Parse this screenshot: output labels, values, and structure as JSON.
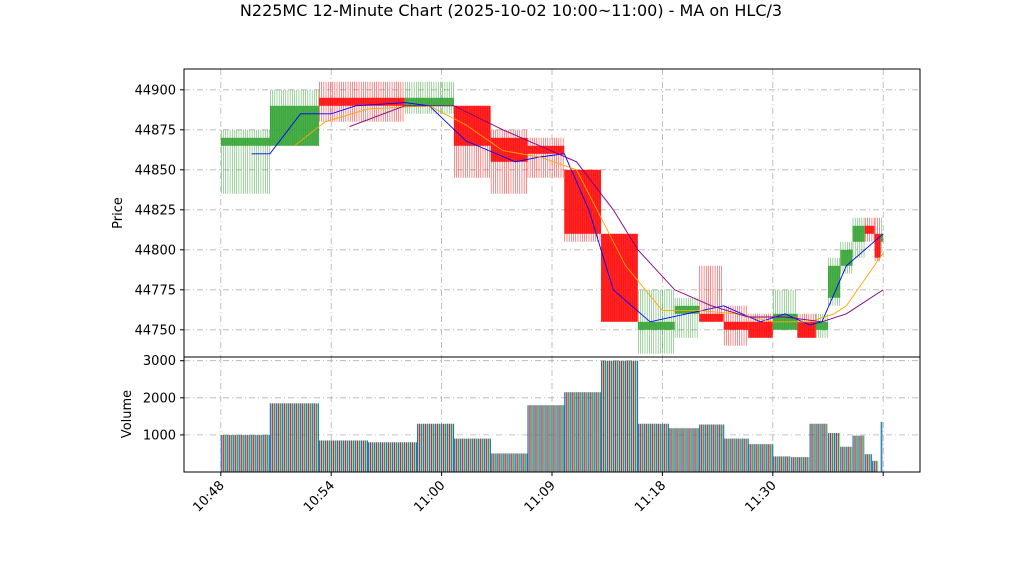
{
  "chart_data": {
    "type": "candlestick",
    "title": "N225MC 12-Minute Chart (2025-10-02 10:00~11:00) - MA on HLC/3",
    "price_panel": {
      "ylabel": "Price",
      "ylim": [
        44733,
        44913
      ],
      "yticks": [
        44750,
        44775,
        44800,
        44825,
        44850,
        44875,
        44900
      ],
      "up_color": "#2ca02c",
      "down_color": "#ff0000",
      "candles": [
        {
          "t": 0,
          "w": 4,
          "open": 44865,
          "high": 44875,
          "low": 44835,
          "close": 44870
        },
        {
          "t": 4,
          "w": 4,
          "open": 44865,
          "high": 44900,
          "low": 44865,
          "close": 44890
        },
        {
          "t": 8,
          "w": 7,
          "open": 44895,
          "high": 44905,
          "low": 44880,
          "close": 44890
        },
        {
          "t": 15,
          "w": 4,
          "open": 44890,
          "high": 44905,
          "low": 44885,
          "close": 44895
        },
        {
          "t": 19,
          "w": 3,
          "open": 44890,
          "high": 44890,
          "low": 44845,
          "close": 44865
        },
        {
          "t": 22,
          "w": 3,
          "open": 44870,
          "high": 44875,
          "low": 44835,
          "close": 44855
        },
        {
          "t": 25,
          "w": 3,
          "open": 44865,
          "high": 44870,
          "low": 44845,
          "close": 44860
        },
        {
          "t": 28,
          "w": 3,
          "open": 44850,
          "high": 44850,
          "low": 44805,
          "close": 44810
        },
        {
          "t": 31,
          "w": 3,
          "open": 44810,
          "high": 44810,
          "low": 44755,
          "close": 44755
        },
        {
          "t": 34,
          "w": 3,
          "open": 44750,
          "high": 44775,
          "low": 44735,
          "close": 44755
        },
        {
          "t": 37,
          "w": 2,
          "open": 44760,
          "high": 44770,
          "low": 44745,
          "close": 44765
        },
        {
          "t": 39,
          "w": 2,
          "open": 44760,
          "high": 44790,
          "low": 44755,
          "close": 44755
        },
        {
          "t": 41,
          "w": 2,
          "open": 44755,
          "high": 44765,
          "low": 44740,
          "close": 44750
        },
        {
          "t": 43,
          "w": 2,
          "open": 44755,
          "high": 44760,
          "low": 44745,
          "close": 44745
        },
        {
          "t": 45,
          "w": 2,
          "open": 44750,
          "high": 44775,
          "low": 44750,
          "close": 44760
        },
        {
          "t": 47,
          "w": 1.5,
          "open": 44755,
          "high": 44760,
          "low": 44745,
          "close": 44745
        },
        {
          "t": 48.5,
          "w": 1,
          "open": 44750,
          "high": 44760,
          "low": 44745,
          "close": 44755
        },
        {
          "t": 49.5,
          "w": 1,
          "open": 44770,
          "high": 44795,
          "low": 44765,
          "close": 44790
        },
        {
          "t": 50.5,
          "w": 1,
          "open": 44790,
          "high": 44805,
          "low": 44785,
          "close": 44800
        },
        {
          "t": 51.5,
          "w": 1,
          "open": 44805,
          "high": 44820,
          "low": 44795,
          "close": 44815
        },
        {
          "t": 52.5,
          "w": 0.8,
          "open": 44815,
          "high": 44820,
          "low": 44805,
          "close": 44810
        },
        {
          "t": 53.3,
          "w": 0.5,
          "open": 44810,
          "high": 44820,
          "low": 44793,
          "close": 44795
        },
        {
          "t": 53.8,
          "w": 0.2,
          "open": 44805,
          "high": 44820,
          "low": 44798,
          "close": 44810
        }
      ],
      "ma_series": [
        {
          "color": "#0000ff",
          "points": [
            [
              2.5,
              44860
            ],
            [
              4,
              44860
            ],
            [
              6.5,
              44885
            ],
            [
              9,
              44885
            ],
            [
              11,
              44890
            ],
            [
              15,
              44892
            ],
            [
              17,
              44890
            ],
            [
              20,
              44868
            ],
            [
              24,
              44855
            ],
            [
              26,
              44858
            ],
            [
              28,
              44860
            ],
            [
              30,
              44825
            ],
            [
              32,
              44775
            ],
            [
              35,
              44755
            ],
            [
              38,
              44760
            ],
            [
              41,
              44765
            ],
            [
              44,
              44755
            ],
            [
              46,
              44760
            ],
            [
              48,
              44753
            ],
            [
              49,
              44755
            ],
            [
              51,
              44790
            ],
            [
              54,
              44810
            ]
          ]
        },
        {
          "color": "#ffa500",
          "points": [
            [
              6,
              44865
            ],
            [
              8.5,
              44880
            ],
            [
              12,
              44888
            ],
            [
              17,
              44890
            ],
            [
              20,
              44878
            ],
            [
              23,
              44862
            ],
            [
              26,
              44858
            ],
            [
              29,
              44850
            ],
            [
              31,
              44820
            ],
            [
              33,
              44790
            ],
            [
              36,
              44762
            ],
            [
              39,
              44762
            ],
            [
              42,
              44760
            ],
            [
              45,
              44755
            ],
            [
              48,
              44755
            ],
            [
              50,
              44760
            ],
            [
              51,
              44765
            ],
            [
              54,
              44798
            ]
          ]
        },
        {
          "color": "#800080",
          "points": [
            [
              10.5,
              44877
            ],
            [
              15,
              44890
            ],
            [
              19,
              44890
            ],
            [
              23,
              44875
            ],
            [
              26,
              44865
            ],
            [
              29,
              44855
            ],
            [
              32,
              44825
            ],
            [
              34,
              44800
            ],
            [
              37,
              44775
            ],
            [
              40,
              44765
            ],
            [
              43,
              44758
            ],
            [
              46,
              44758
            ],
            [
              49,
              44755
            ],
            [
              51,
              44760
            ],
            [
              54,
              44775
            ]
          ]
        }
      ]
    },
    "volume_panel": {
      "ylabel": "Volume",
      "ylim": [
        0,
        3100
      ],
      "yticks": [
        1000,
        2000,
        3000
      ],
      "bars": [
        {
          "t": 0,
          "w": 4,
          "value": 1000
        },
        {
          "t": 4,
          "w": 4,
          "value": 1850
        },
        {
          "t": 8,
          "w": 4,
          "value": 850
        },
        {
          "t": 12,
          "w": 4,
          "value": 800
        },
        {
          "t": 16,
          "w": 3,
          "value": 1300
        },
        {
          "t": 19,
          "w": 3,
          "value": 900
        },
        {
          "t": 22,
          "w": 3,
          "value": 500
        },
        {
          "t": 25,
          "w": 3,
          "value": 1800
        },
        {
          "t": 28,
          "w": 3,
          "value": 2150
        },
        {
          "t": 31,
          "w": 3,
          "value": 3000
        },
        {
          "t": 34,
          "w": 2.5,
          "value": 1300
        },
        {
          "t": 36.5,
          "w": 2.5,
          "value": 1180
        },
        {
          "t": 39,
          "w": 2,
          "value": 1280
        },
        {
          "t": 41,
          "w": 2,
          "value": 900
        },
        {
          "t": 43,
          "w": 2,
          "value": 750
        },
        {
          "t": 45,
          "w": 1.5,
          "value": 420
        },
        {
          "t": 46.5,
          "w": 1.5,
          "value": 400
        },
        {
          "t": 48,
          "w": 1.5,
          "value": 1300
        },
        {
          "t": 49.5,
          "w": 1,
          "value": 1050
        },
        {
          "t": 50.5,
          "w": 1,
          "value": 680
        },
        {
          "t": 51.5,
          "w": 1,
          "value": 980
        },
        {
          "t": 52.5,
          "w": 0.6,
          "value": 480
        },
        {
          "t": 53.1,
          "w": 0.5,
          "value": 300
        },
        {
          "t": 53.8,
          "w": 0.2,
          "value": 1350
        }
      ],
      "bar_colors": [
        "#1f77b4",
        "#d62728",
        "#2ca02c"
      ]
    },
    "x_axis": {
      "ticks": [
        {
          "t": 0,
          "label": "10:48"
        },
        {
          "t": 9,
          "label": "10:54"
        },
        {
          "t": 18,
          "label": "11:00"
        },
        {
          "t": 27,
          "label": "11:09"
        },
        {
          "t": 36,
          "label": "11:18"
        },
        {
          "t": 45,
          "label": "11:30"
        },
        {
          "t": 54,
          "label": ""
        }
      ],
      "xlim": [
        -3,
        57
      ]
    },
    "grid": true
  }
}
